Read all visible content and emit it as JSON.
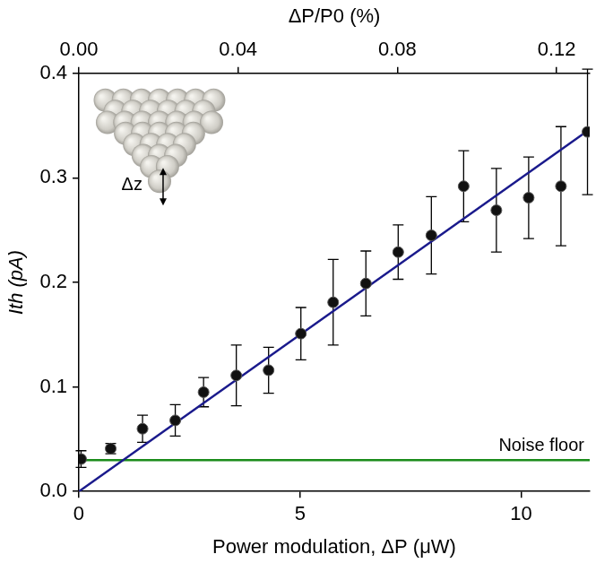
{
  "chart_data": {
    "type": "scatter",
    "x_label": "Power modulation, ΔP (μW)",
    "x2_label": "ΔP/P0 (%)",
    "y_label": "Ith (pA)",
    "xlim": [
      0,
      11.55
    ],
    "xticks": [
      0,
      5,
      10
    ],
    "x2lim": [
      0,
      0.1283
    ],
    "x2ticks": [
      {
        "value": 0,
        "label": "0.00"
      },
      {
        "value": 0.04,
        "label": "0.04"
      },
      {
        "value": 0.08,
        "label": "0.08"
      },
      {
        "value": 0.12,
        "label": "0.12"
      }
    ],
    "ylim": [
      0,
      0.4
    ],
    "yticks": [
      {
        "value": 0,
        "label": "0.0"
      },
      0.1,
      0.2,
      0.3,
      0.4
    ],
    "grid": false,
    "x": [
      0.05,
      0.72,
      1.44,
      2.18,
      2.82,
      3.56,
      4.29,
      5.02,
      5.75,
      6.49,
      7.22,
      7.97,
      8.7,
      9.44,
      10.17,
      10.9,
      11.5
    ],
    "values": [
      0.031,
      0.041,
      0.06,
      0.068,
      0.095,
      0.111,
      0.116,
      0.151,
      0.181,
      0.199,
      0.229,
      0.245,
      0.292,
      0.269,
      0.281,
      0.292,
      0.344
    ],
    "errors": [
      0.008,
      0.005,
      0.013,
      0.015,
      0.014,
      0.029,
      0.022,
      0.025,
      0.041,
      0.031,
      0.026,
      0.037,
      0.034,
      0.04,
      0.039,
      0.057,
      0.06
    ],
    "color": "#111111",
    "marker": "circle",
    "fit": {
      "x": [
        0,
        11.55
      ],
      "values": [
        0,
        0.3465
      ],
      "color": "#1a1a8c"
    },
    "noise_floor": {
      "value": 0.03,
      "label": "Noise floor",
      "color": "#1a8c1a"
    },
    "inset_label": "Δz"
  }
}
